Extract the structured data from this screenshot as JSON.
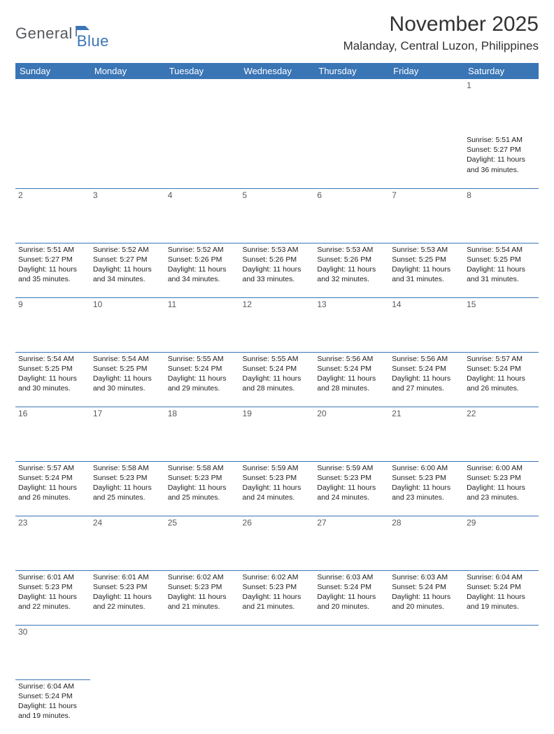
{
  "brand": {
    "part1": "General",
    "part2": "Blue"
  },
  "title": "November 2025",
  "location": "Malanday, Central Luzon, Philippines",
  "colors": {
    "header_bg": "#3a75b5",
    "header_text": "#ffffff",
    "daynum_bg": "#e8e8e8",
    "daynum_text": "#5a5a5a",
    "cell_text": "#222222",
    "border": "#3a75b5",
    "title_text": "#323232",
    "logo_gray": "#555a5e",
    "logo_blue": "#3a75b5"
  },
  "typography": {
    "month_title_size": 30,
    "location_size": 17,
    "weekday_size": 13,
    "daynum_size": 12,
    "cell_size": 10.5
  },
  "weekdays": [
    "Sunday",
    "Monday",
    "Tuesday",
    "Wednesday",
    "Thursday",
    "Friday",
    "Saturday"
  ],
  "weeks": [
    [
      null,
      null,
      null,
      null,
      null,
      null,
      {
        "n": "1",
        "sr": "5:51 AM",
        "ss": "5:27 PM",
        "dl": "11 hours and 36 minutes."
      }
    ],
    [
      {
        "n": "2",
        "sr": "5:51 AM",
        "ss": "5:27 PM",
        "dl": "11 hours and 35 minutes."
      },
      {
        "n": "3",
        "sr": "5:52 AM",
        "ss": "5:27 PM",
        "dl": "11 hours and 34 minutes."
      },
      {
        "n": "4",
        "sr": "5:52 AM",
        "ss": "5:26 PM",
        "dl": "11 hours and 34 minutes."
      },
      {
        "n": "5",
        "sr": "5:53 AM",
        "ss": "5:26 PM",
        "dl": "11 hours and 33 minutes."
      },
      {
        "n": "6",
        "sr": "5:53 AM",
        "ss": "5:26 PM",
        "dl": "11 hours and 32 minutes."
      },
      {
        "n": "7",
        "sr": "5:53 AM",
        "ss": "5:25 PM",
        "dl": "11 hours and 31 minutes."
      },
      {
        "n": "8",
        "sr": "5:54 AM",
        "ss": "5:25 PM",
        "dl": "11 hours and 31 minutes."
      }
    ],
    [
      {
        "n": "9",
        "sr": "5:54 AM",
        "ss": "5:25 PM",
        "dl": "11 hours and 30 minutes."
      },
      {
        "n": "10",
        "sr": "5:54 AM",
        "ss": "5:25 PM",
        "dl": "11 hours and 30 minutes."
      },
      {
        "n": "11",
        "sr": "5:55 AM",
        "ss": "5:24 PM",
        "dl": "11 hours and 29 minutes."
      },
      {
        "n": "12",
        "sr": "5:55 AM",
        "ss": "5:24 PM",
        "dl": "11 hours and 28 minutes."
      },
      {
        "n": "13",
        "sr": "5:56 AM",
        "ss": "5:24 PM",
        "dl": "11 hours and 28 minutes."
      },
      {
        "n": "14",
        "sr": "5:56 AM",
        "ss": "5:24 PM",
        "dl": "11 hours and 27 minutes."
      },
      {
        "n": "15",
        "sr": "5:57 AM",
        "ss": "5:24 PM",
        "dl": "11 hours and 26 minutes."
      }
    ],
    [
      {
        "n": "16",
        "sr": "5:57 AM",
        "ss": "5:24 PM",
        "dl": "11 hours and 26 minutes."
      },
      {
        "n": "17",
        "sr": "5:58 AM",
        "ss": "5:23 PM",
        "dl": "11 hours and 25 minutes."
      },
      {
        "n": "18",
        "sr": "5:58 AM",
        "ss": "5:23 PM",
        "dl": "11 hours and 25 minutes."
      },
      {
        "n": "19",
        "sr": "5:59 AM",
        "ss": "5:23 PM",
        "dl": "11 hours and 24 minutes."
      },
      {
        "n": "20",
        "sr": "5:59 AM",
        "ss": "5:23 PM",
        "dl": "11 hours and 24 minutes."
      },
      {
        "n": "21",
        "sr": "6:00 AM",
        "ss": "5:23 PM",
        "dl": "11 hours and 23 minutes."
      },
      {
        "n": "22",
        "sr": "6:00 AM",
        "ss": "5:23 PM",
        "dl": "11 hours and 23 minutes."
      }
    ],
    [
      {
        "n": "23",
        "sr": "6:01 AM",
        "ss": "5:23 PM",
        "dl": "11 hours and 22 minutes."
      },
      {
        "n": "24",
        "sr": "6:01 AM",
        "ss": "5:23 PM",
        "dl": "11 hours and 22 minutes."
      },
      {
        "n": "25",
        "sr": "6:02 AM",
        "ss": "5:23 PM",
        "dl": "11 hours and 21 minutes."
      },
      {
        "n": "26",
        "sr": "6:02 AM",
        "ss": "5:23 PM",
        "dl": "11 hours and 21 minutes."
      },
      {
        "n": "27",
        "sr": "6:03 AM",
        "ss": "5:24 PM",
        "dl": "11 hours and 20 minutes."
      },
      {
        "n": "28",
        "sr": "6:03 AM",
        "ss": "5:24 PM",
        "dl": "11 hours and 20 minutes."
      },
      {
        "n": "29",
        "sr": "6:04 AM",
        "ss": "5:24 PM",
        "dl": "11 hours and 19 minutes."
      }
    ],
    [
      {
        "n": "30",
        "sr": "6:04 AM",
        "ss": "5:24 PM",
        "dl": "11 hours and 19 minutes."
      },
      null,
      null,
      null,
      null,
      null,
      null
    ]
  ],
  "labels": {
    "sunrise": "Sunrise: ",
    "sunset": "Sunset: ",
    "daylight": "Daylight: "
  }
}
